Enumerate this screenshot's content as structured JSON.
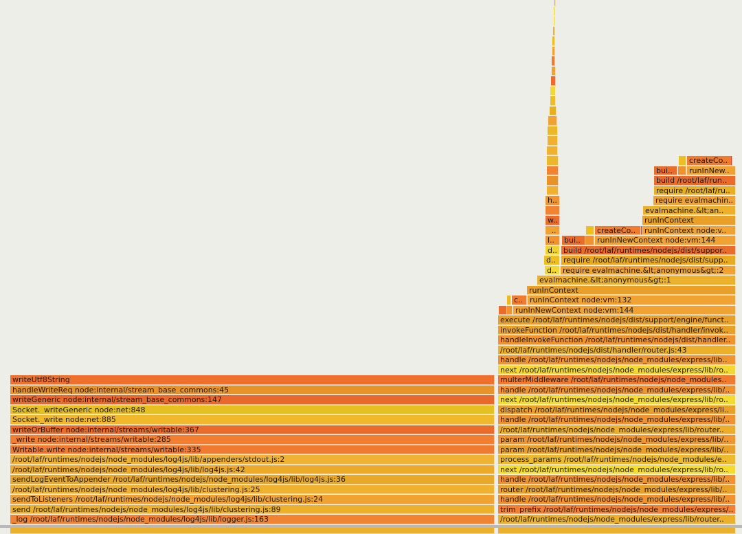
{
  "frames": [
    {
      "label": "_log /root/laf/runtimes/nodejs/node_modules/log4js/lib/logger.js:163"
    },
    {
      "label": "send /root/laf/runtimes/nodejs/node_modules/log4js/lib/clustering.js:89"
    },
    {
      "label": "sendToListeners /root/laf/runtimes/nodejs/node_modules/log4js/lib/clustering.js:24"
    },
    {
      "label": "/root/laf/runtimes/nodejs/node_modules/log4js/lib/clustering.js:25"
    },
    {
      "label": "sendLogEventToAppender /root/laf/runtimes/nodejs/node_modules/log4js/lib/log4js.js:36"
    },
    {
      "label": "/root/laf/runtimes/nodejs/node_modules/log4js/lib/log4js.js:42"
    },
    {
      "label": "/root/laf/runtimes/nodejs/node_modules/log4js/lib/appenders/stdout.js:2"
    },
    {
      "label": "Writable.write node:internal/streams/writable:335"
    },
    {
      "label": "_write node:internal/streams/writable:285"
    },
    {
      "label": "writeOrBuffer node:internal/streams/writable:367"
    },
    {
      "label": "Socket._write node:net:885"
    },
    {
      "label": "Socket._writeGeneric node:net:848"
    },
    {
      "label": "writeGeneric node:internal/stream_base_commons:147"
    },
    {
      "label": "handleWriteReq node:internal/stream_base_commons:45"
    },
    {
      "label": "writeUtf8String"
    },
    {
      "label": "/root/laf/runtimes/nodejs/node_modules/express/lib/router.."
    },
    {
      "label": "trim_prefix /root/laf/runtimes/nodejs/node_modules/express/.."
    },
    {
      "label": "handle /root/laf/runtimes/nodejs/node_modules/express/lib/.."
    },
    {
      "label": "router /root/laf/runtimes/nodejs/node_modules/express/lib/.."
    },
    {
      "label": "handle /root/laf/runtimes/nodejs/node_modules/express/lib/.."
    },
    {
      "label": "next /root/laf/runtimes/nodejs/node_modules/express/lib/ro.."
    },
    {
      "label": "process_params /root/laf/runtimes/nodejs/node_modules/e.."
    },
    {
      "label": "param /root/laf/runtimes/nodejs/node_modules/express/lib/.."
    },
    {
      "label": "param /root/laf/runtimes/nodejs/node_modules/express/lib/.."
    },
    {
      "label": "/root/laf/runtimes/nodejs/node_modules/express/lib/router.."
    },
    {
      "label": "handle /root/laf/runtimes/nodejs/node_modules/express/lib/.."
    },
    {
      "label": "dispatch /root/laf/runtimes/nodejs/node_modules/express/li.."
    },
    {
      "label": "next /root/laf/runtimes/nodejs/node_modules/express/lib/ro.."
    },
    {
      "label": "handle /root/laf/runtimes/nodejs/node_modules/express/lib/.."
    },
    {
      "label": "multerMiddleware /root/laf/runtimes/nodejs/node_modules.."
    },
    {
      "label": "next /root/laf/runtimes/nodejs/node_modules/express/lib/ro.."
    },
    {
      "label": "handle /root/laf/runtimes/nodejs/node_modules/express/lib.."
    },
    {
      "label": "/root/laf/runtimes/nodejs/dist/handler/router.js:43"
    },
    {
      "label": "handleInvokeFunction /root/laf/runtimes/nodejs/dist/handler.."
    },
    {
      "label": "invokeFunction /root/laf/runtimes/nodejs/dist/handler/invok.."
    },
    {
      "label": "execute /root/laf/runtimes/nodejs/dist/support/engine/funct.."
    },
    {
      "label": "runInNewContext node:vm:144"
    },
    {
      "label": "runInContext node:vm:132"
    },
    {
      "label": "c.."
    },
    {
      "label": "runInContext"
    },
    {
      "label": "evalmachine.&lt;anonymous&gt;:1"
    },
    {
      "label": "require evalmachine.&lt;anonymous&gt;:2"
    },
    {
      "label": "d.."
    },
    {
      "label": "require /root/laf/runtimes/nodejs/dist/supp.."
    },
    {
      "label": "d.."
    },
    {
      "label": "build /root/laf/runtimes/nodejs/dist/suppor.."
    },
    {
      "label": "d.."
    },
    {
      "label": "runInNewContext node:vm:144"
    },
    {
      "label": "bui.."
    },
    {
      "label": "l.."
    },
    {
      "label": "runInContext node:v.."
    },
    {
      "label": "createCo.."
    },
    {
      "label": "_.."
    },
    {
      "label": "runInContext"
    },
    {
      "label": "w.."
    },
    {
      "label": "evalmachine.&lt;an.."
    },
    {
      "label": "require evalmachin.."
    },
    {
      "label": "h.."
    },
    {
      "label": "require /root/laf/ru.."
    },
    {
      "label": "build /root/laf/run.."
    },
    {
      "label": "runInNew.."
    },
    {
      "label": "bui.."
    },
    {
      "label": "createCo.."
    }
  ]
}
